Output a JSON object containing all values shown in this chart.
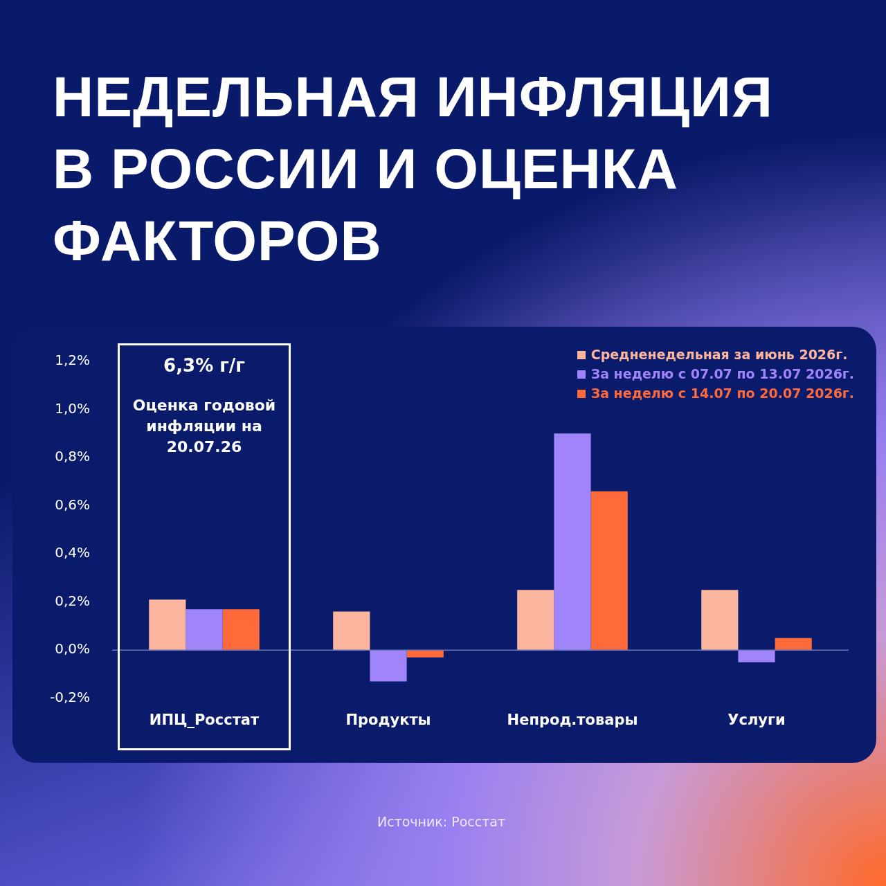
{
  "chart_data": {
    "type": "bar",
    "title": "НЕДЕЛЬНАЯ ИНФЛЯЦИЯ В РОССИИ И ОЦЕНКА ФАКТОРОВ",
    "categories": [
      "ИПЦ_Росстат",
      "Продукты",
      "Непрод.товары",
      "Услуги"
    ],
    "series": [
      {
        "name": "Средненедельная за июнь 2026г.",
        "color": "#fcb59e",
        "values": [
          0.21,
          0.16,
          0.25,
          0.25
        ]
      },
      {
        "name": "За неделю с 07.07 по 13.07 2026г.",
        "color": "#a084fa",
        "values": [
          0.17,
          -0.13,
          0.9,
          -0.05
        ]
      },
      {
        "name": "За неделю с 14.07 по 20.07 2026г.",
        "color": "#ff6a3a",
        "values": [
          0.17,
          -0.03,
          0.66,
          0.05
        ]
      }
    ],
    "ylim": [
      -0.2,
      1.2
    ],
    "yticks": [
      {
        "value": -0.2,
        "label": "-0,2%"
      },
      {
        "value": 0,
        "label": "0,0%"
      },
      {
        "value": 0.2,
        "label": "0,2%"
      },
      {
        "value": 0.4,
        "label": "0,4%"
      },
      {
        "value": 0.6,
        "label": "0,6%"
      },
      {
        "value": 0.8,
        "label": "0,8%"
      },
      {
        "value": 1.0,
        "label": "1,0%"
      },
      {
        "value": 1.2,
        "label": "1,2%"
      }
    ],
    "legend": "top right",
    "ref_lines": [
      {
        "axis": "y",
        "value": 0,
        "color": "#6d78b8"
      }
    ],
    "annotations": [
      "6,3% г/г",
      "Оценка годовой инфляции на 20.07.26",
      "Источник: Росстат"
    ]
  }
}
